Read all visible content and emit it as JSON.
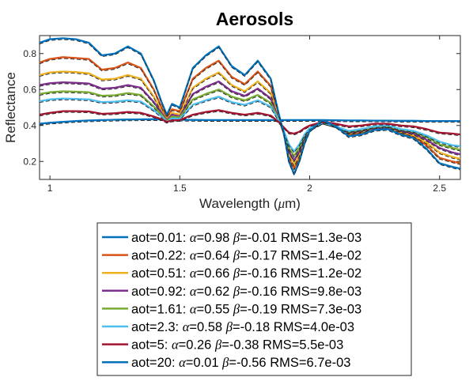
{
  "chart_data": {
    "type": "line",
    "title": "Aerosols",
    "xlabel_prefix": "Wavelength (",
    "xlabel_mu": "μ",
    "xlabel_suffix": "m)",
    "ylabel": "Reflectance",
    "xlim": [
      0.96,
      2.58
    ],
    "ylim": [
      0.1,
      0.9
    ],
    "xticks": [
      1,
      1.5,
      2,
      2.5
    ],
    "xtick_labels": [
      "1",
      "1.5",
      "2",
      "2.5"
    ],
    "yticks": [
      0.2,
      0.4,
      0.6,
      0.8
    ],
    "ytick_labels": [
      "0.2",
      "0.4",
      "0.6",
      "0.8"
    ],
    "grid": false,
    "legend_position": "bottom",
    "x": [
      0.96,
      1.0,
      1.05,
      1.1,
      1.15,
      1.2,
      1.25,
      1.3,
      1.35,
      1.4,
      1.43,
      1.45,
      1.47,
      1.5,
      1.55,
      1.6,
      1.65,
      1.7,
      1.75,
      1.8,
      1.85,
      1.88,
      1.9,
      1.92,
      1.94,
      1.96,
      1.98,
      2.0,
      2.05,
      2.1,
      2.15,
      2.2,
      2.25,
      2.3,
      2.35,
      2.4,
      2.45,
      2.5,
      2.55,
      2.58
    ],
    "series": [
      {
        "aot": "0.01",
        "alpha": "0.98",
        "beta": "-0.01",
        "rms": "1.3e-03",
        "color": "#0072BD",
        "values": [
          0.41,
          0.415,
          0.42,
          0.425,
          0.428,
          0.43,
          0.432,
          0.433,
          0.434,
          0.435,
          0.434,
          0.433,
          0.432,
          0.432,
          0.431,
          0.43,
          0.43,
          0.43,
          0.43,
          0.43,
          0.43,
          0.43,
          0.43,
          0.43,
          0.43,
          0.43,
          0.43,
          0.43,
          0.43,
          0.429,
          0.428,
          0.428,
          0.427,
          0.427,
          0.426,
          0.426,
          0.425,
          0.425,
          0.425,
          0.425
        ]
      },
      {
        "aot": "0.22",
        "alpha": "0.64",
        "beta": "-0.17",
        "rms": "1.4e-02",
        "color": "#D95319",
        "values": [
          0.75,
          0.77,
          0.78,
          0.775,
          0.77,
          0.71,
          0.72,
          0.75,
          0.72,
          0.6,
          0.5,
          0.45,
          0.49,
          0.48,
          0.66,
          0.72,
          0.76,
          0.67,
          0.63,
          0.7,
          0.62,
          0.46,
          0.36,
          0.22,
          0.16,
          0.22,
          0.32,
          0.38,
          0.43,
          0.4,
          0.35,
          0.36,
          0.38,
          0.385,
          0.36,
          0.34,
          0.29,
          0.22,
          0.2,
          0.19
        ]
      },
      {
        "aot": "0.51",
        "alpha": "0.66",
        "beta": "-0.16",
        "rms": "1.2e-02",
        "color": "#EDB120",
        "values": [
          0.68,
          0.695,
          0.7,
          0.697,
          0.69,
          0.655,
          0.66,
          0.68,
          0.66,
          0.56,
          0.48,
          0.435,
          0.47,
          0.46,
          0.61,
          0.66,
          0.695,
          0.625,
          0.59,
          0.645,
          0.58,
          0.445,
          0.355,
          0.235,
          0.18,
          0.235,
          0.32,
          0.375,
          0.42,
          0.395,
          0.355,
          0.365,
          0.38,
          0.385,
          0.365,
          0.345,
          0.305,
          0.25,
          0.225,
          0.215
        ]
      },
      {
        "aot": "0.92",
        "alpha": "0.62",
        "beta": "-0.16",
        "rms": "9.8e-03",
        "color": "#7E2F8E",
        "values": [
          0.625,
          0.635,
          0.64,
          0.637,
          0.633,
          0.605,
          0.61,
          0.625,
          0.61,
          0.53,
          0.47,
          0.43,
          0.46,
          0.45,
          0.575,
          0.615,
          0.645,
          0.59,
          0.565,
          0.605,
          0.55,
          0.44,
          0.36,
          0.255,
          0.205,
          0.255,
          0.33,
          0.375,
          0.415,
          0.395,
          0.36,
          0.37,
          0.385,
          0.39,
          0.37,
          0.355,
          0.32,
          0.275,
          0.25,
          0.24
        ]
      },
      {
        "aot": "1.61",
        "alpha": "0.55",
        "beta": "-0.19",
        "rms": "7.3e-03",
        "color": "#77AC30",
        "values": [
          0.575,
          0.585,
          0.59,
          0.588,
          0.585,
          0.565,
          0.568,
          0.58,
          0.57,
          0.505,
          0.46,
          0.425,
          0.45,
          0.445,
          0.545,
          0.575,
          0.6,
          0.56,
          0.54,
          0.57,
          0.525,
          0.435,
          0.365,
          0.275,
          0.23,
          0.275,
          0.34,
          0.38,
          0.415,
          0.395,
          0.365,
          0.375,
          0.39,
          0.395,
          0.375,
          0.365,
          0.335,
          0.295,
          0.275,
          0.265
        ]
      },
      {
        "aot": "2.3",
        "alpha": "0.58",
        "beta": "-0.18",
        "rms": "4.0e-03",
        "color": "#4DBEEE",
        "values": [
          0.535,
          0.545,
          0.55,
          0.548,
          0.545,
          0.53,
          0.532,
          0.54,
          0.533,
          0.485,
          0.45,
          0.42,
          0.44,
          0.437,
          0.515,
          0.54,
          0.56,
          0.53,
          0.515,
          0.54,
          0.505,
          0.43,
          0.37,
          0.295,
          0.255,
          0.295,
          0.35,
          0.385,
          0.415,
          0.395,
          0.37,
          0.38,
          0.395,
          0.4,
          0.38,
          0.37,
          0.345,
          0.31,
          0.29,
          0.285
        ]
      },
      {
        "aot": "5",
        "alpha": "0.26",
        "beta": "-0.38",
        "rms": "5.5e-03",
        "color": "#A2142F",
        "values": [
          0.46,
          0.47,
          0.48,
          0.48,
          0.478,
          0.465,
          0.468,
          0.475,
          0.47,
          0.45,
          0.435,
          0.42,
          0.428,
          0.43,
          0.46,
          0.475,
          0.485,
          0.47,
          0.46,
          0.47,
          0.455,
          0.42,
          0.39,
          0.36,
          0.355,
          0.365,
          0.385,
          0.4,
          0.42,
          0.41,
          0.395,
          0.4,
          0.41,
          0.41,
          0.4,
          0.395,
          0.38,
          0.36,
          0.355,
          0.35
        ]
      },
      {
        "aot": "20",
        "alpha": "0.01",
        "beta": "-0.56",
        "rms": "6.7e-03",
        "color": "#0072BD",
        "values": [
          0.86,
          0.88,
          0.885,
          0.88,
          0.86,
          0.79,
          0.8,
          0.84,
          0.8,
          0.65,
          0.53,
          0.46,
          0.52,
          0.5,
          0.72,
          0.79,
          0.84,
          0.73,
          0.68,
          0.76,
          0.66,
          0.47,
          0.36,
          0.2,
          0.13,
          0.2,
          0.3,
          0.37,
          0.43,
          0.395,
          0.34,
          0.35,
          0.375,
          0.38,
          0.35,
          0.33,
          0.27,
          0.19,
          0.17,
          0.16
        ]
      }
    ]
  }
}
